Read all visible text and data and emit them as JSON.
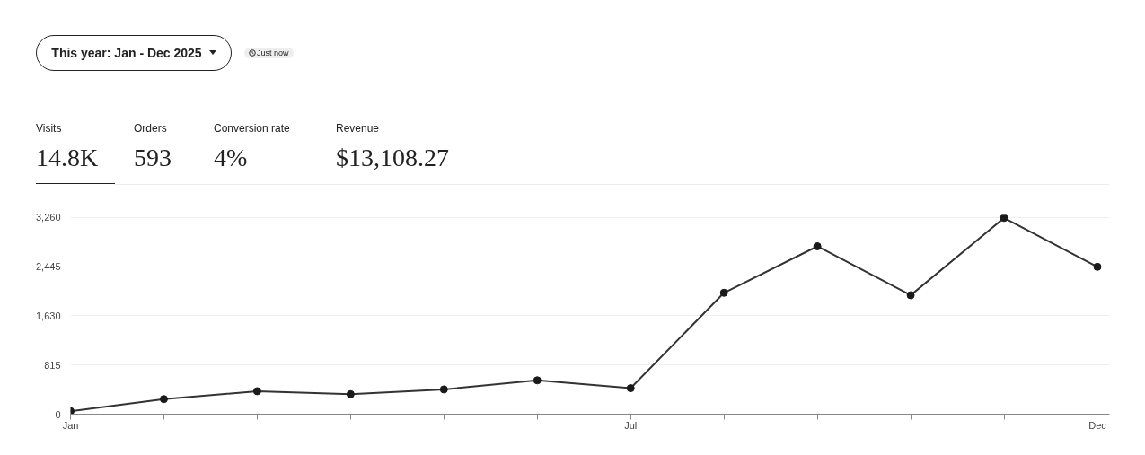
{
  "chart_data": {
    "type": "line",
    "title": "This year: Jan - Dec 2025",
    "subtitle": "Just now",
    "annotations": [
      "Visits",
      "14.8K",
      "Orders",
      "593",
      "Conversion rate",
      "4%",
      "Revenue",
      "$13,108.27"
    ],
    "categories": [
      "Jan",
      null,
      null,
      null,
      null,
      null,
      "Jul",
      null,
      null,
      null,
      null,
      "Dec"
    ],
    "series": [
      {
        "color": "#333333",
        "values": [
          50,
          250,
          380,
          330,
          410,
          560,
          430,
          2010,
          2780,
          1970,
          3250,
          2440
        ]
      }
    ],
    "ylim": [
      0,
      3300
    ],
    "yticks": [
      0,
      {
        "value": 815,
        "label": "815"
      },
      {
        "value": 1630,
        "label": "1,630"
      },
      {
        "value": 2445,
        "label": "2,445"
      },
      {
        "value": 3260,
        "label": "3,260"
      }
    ],
    "grid": "y",
    "marker": "circle",
    "line_style": "solid"
  }
}
